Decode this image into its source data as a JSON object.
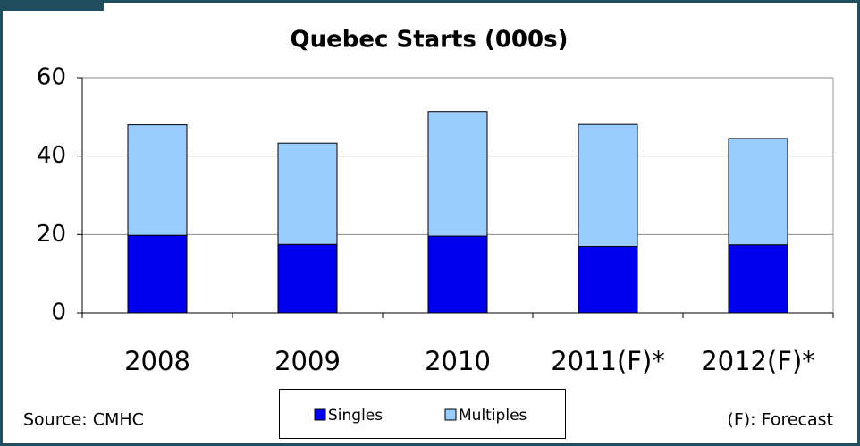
{
  "chart_data": {
    "type": "stacked_bar",
    "title": "Quebec Starts (000s)",
    "categories": [
      "2008",
      "2009",
      "2010",
      "2011(F)*",
      "2012(F)*"
    ],
    "series": [
      {
        "name": "Singles",
        "color": "#0000ee",
        "values": [
          19.8,
          17.5,
          19.6,
          17.0,
          17.4
        ]
      },
      {
        "name": "Multiples",
        "color": "#99ccff",
        "values": [
          28.2,
          25.8,
          31.8,
          31.1,
          27.1
        ]
      }
    ],
    "ylim": [
      0,
      60
    ],
    "yticks": [
      0,
      20,
      40,
      60
    ],
    "grid": true,
    "legend": "bottom",
    "source": "Source: CMHC",
    "footnote": "(F): Forecast"
  }
}
